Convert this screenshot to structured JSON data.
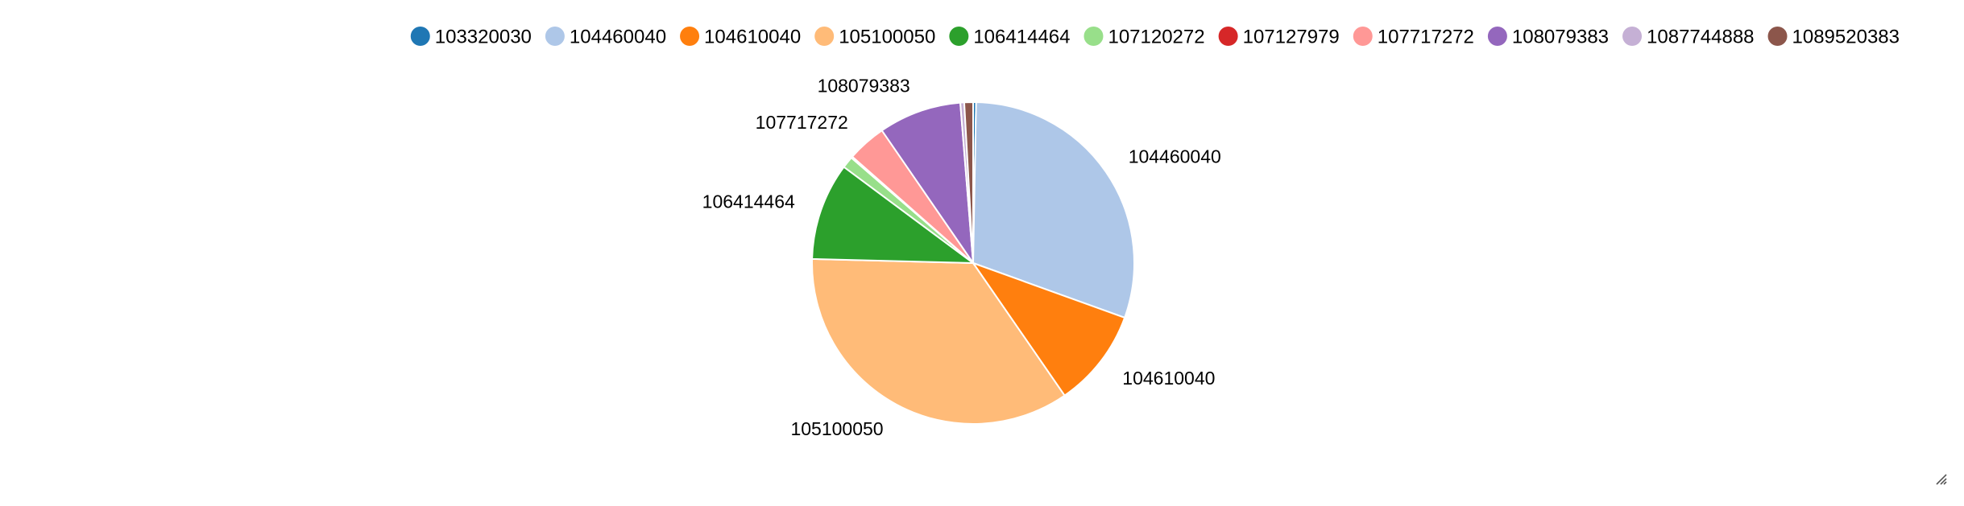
{
  "chart_data": {
    "type": "pie",
    "legend_position": "top",
    "slices": [
      {
        "label": "103320030",
        "value": 0.3,
        "color": "#1f77b4",
        "show_label": false
      },
      {
        "label": "104460040",
        "value": 30.9,
        "color": "#aec7e8",
        "show_label": true
      },
      {
        "label": "104610040",
        "value": 10.1,
        "color": "#ff7f0e",
        "show_label": true
      },
      {
        "label": "105100050",
        "value": 35.8,
        "color": "#ffbb78",
        "show_label": true
      },
      {
        "label": "106414464",
        "value": 10.0,
        "color": "#2ca02c",
        "show_label": true
      },
      {
        "label": "107120272",
        "value": 1.2,
        "color": "#98df8a",
        "show_label": false
      },
      {
        "label": "107127979",
        "value": 0.15,
        "color": "#d62728",
        "show_label": false
      },
      {
        "label": "107717272",
        "value": 4.0,
        "color": "#ff9896",
        "show_label": true
      },
      {
        "label": "108079383",
        "value": 8.5,
        "color": "#9467bd",
        "show_label": true
      },
      {
        "label": "1087744888",
        "value": 0.4,
        "color": "#c5b0d5",
        "show_label": false
      },
      {
        "label": "1089520383",
        "value": 0.9,
        "color": "#8c564b",
        "show_label": false
      }
    ]
  }
}
